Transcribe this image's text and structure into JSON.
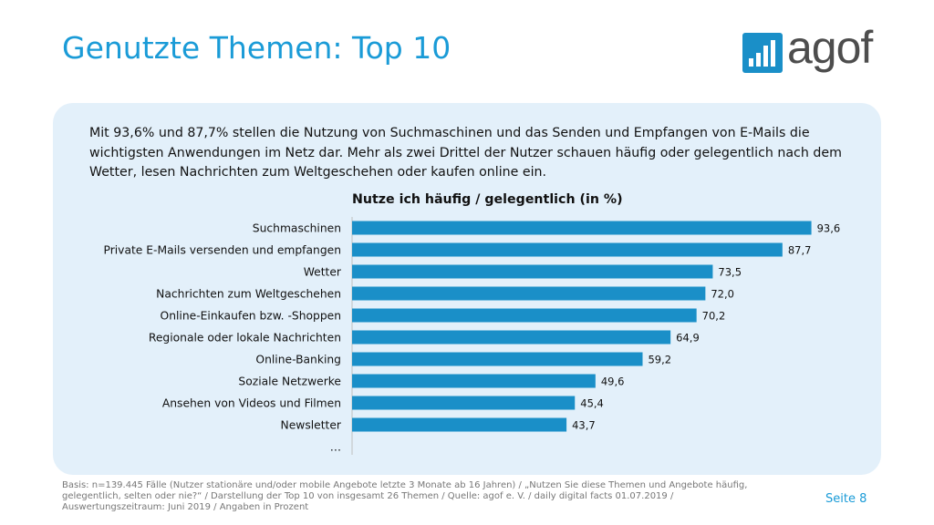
{
  "slide": {
    "title": "Genutzte Themen: Top 10",
    "logo_text": "agof",
    "intro": "Mit 93,6% und 87,7% stellen die Nutzung von Suchmaschinen und das Senden und Empfangen von E-Mails die wichtigsten Anwendungen im Netz dar. Mehr als zwei Drittel der Nutzer schauen häufig oder gelegentlich nach dem Wetter, lesen Nachrichten zum Weltgeschehen oder kaufen online ein.",
    "footer": "Basis: n=139.445 Fälle (Nutzer stationäre und/oder mobile Angebote letzte 3 Monate ab 16 Jahren) / „Nutzen Sie diese Themen und Angebote häufig, gelegentlich, selten oder nie?“ / Darstellung der Top 10 von insgesamt 26 Themen / Quelle: agof e. V. / daily digital facts 01.07.2019 / Auswertungszeitraum: Juni 2019 / Angaben in Prozent",
    "page_number": "Seite 8"
  },
  "colors": {
    "accent": "#1a9bd7",
    "bar": "#1a8fc8",
    "panel": "#e3f0fa",
    "logo": "#1a8fc8"
  },
  "chart_data": {
    "type": "bar",
    "orientation": "horizontal",
    "title": "Nutze ich häufig / gelegentlich (in %)",
    "categories": [
      "Suchmaschinen",
      "Private E-Mails versenden und empfangen",
      "Wetter",
      "Nachrichten zum Weltgeschehen",
      "Online-Einkaufen bzw. -Shoppen",
      "Regionale oder lokale Nachrichten",
      "Online-Banking",
      "Soziale Netzwerke",
      "Ansehen von Videos und Filmen",
      "Newsletter"
    ],
    "values": [
      93.6,
      87.7,
      73.5,
      72.0,
      70.2,
      64.9,
      59.2,
      49.6,
      45.4,
      43.7
    ],
    "value_labels": [
      "93,6",
      "87,7",
      "73,5",
      "72,0",
      "70,2",
      "64,9",
      "59,2",
      "49,6",
      "45,4",
      "43,7"
    ],
    "trailing_label": "…",
    "xlim": [
      0,
      100
    ],
    "grid": false,
    "legend": "none"
  }
}
